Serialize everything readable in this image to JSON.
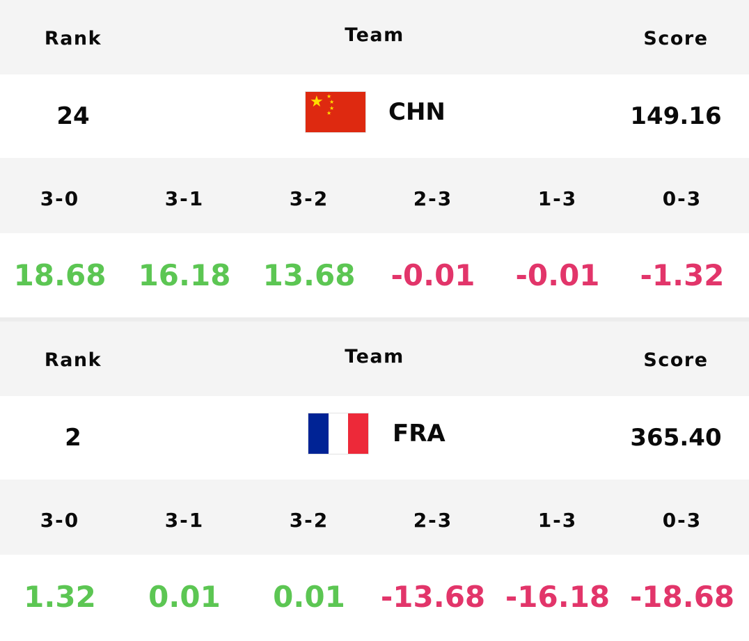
{
  "headers": {
    "rank": "Rank",
    "team": "Team",
    "score": "Score"
  },
  "outcome_labels": [
    "3-0",
    "3-1",
    "3-2",
    "2-3",
    "1-3",
    "0-3"
  ],
  "colors": {
    "positive": "#5cc653",
    "negative": "#e2356a",
    "header_bg": "#f4f4f4",
    "divider": "#ececec"
  },
  "teams": [
    {
      "rank": "24",
      "code": "CHN",
      "flag_icon": "china-flag-icon",
      "score": "149.16",
      "values": [
        {
          "text": "18.68",
          "sign": "positive"
        },
        {
          "text": "16.18",
          "sign": "positive"
        },
        {
          "text": "13.68",
          "sign": "positive"
        },
        {
          "text": "-0.01",
          "sign": "negative"
        },
        {
          "text": "-0.01",
          "sign": "negative"
        },
        {
          "text": "-1.32",
          "sign": "negative"
        }
      ]
    },
    {
      "rank": "2",
      "code": "FRA",
      "flag_icon": "france-flag-icon",
      "score": "365.40",
      "values": [
        {
          "text": "1.32",
          "sign": "positive"
        },
        {
          "text": "0.01",
          "sign": "positive"
        },
        {
          "text": "0.01",
          "sign": "positive"
        },
        {
          "text": "-13.68",
          "sign": "negative"
        },
        {
          "text": "-16.18",
          "sign": "negative"
        },
        {
          "text": "-18.68",
          "sign": "negative"
        }
      ]
    }
  ]
}
